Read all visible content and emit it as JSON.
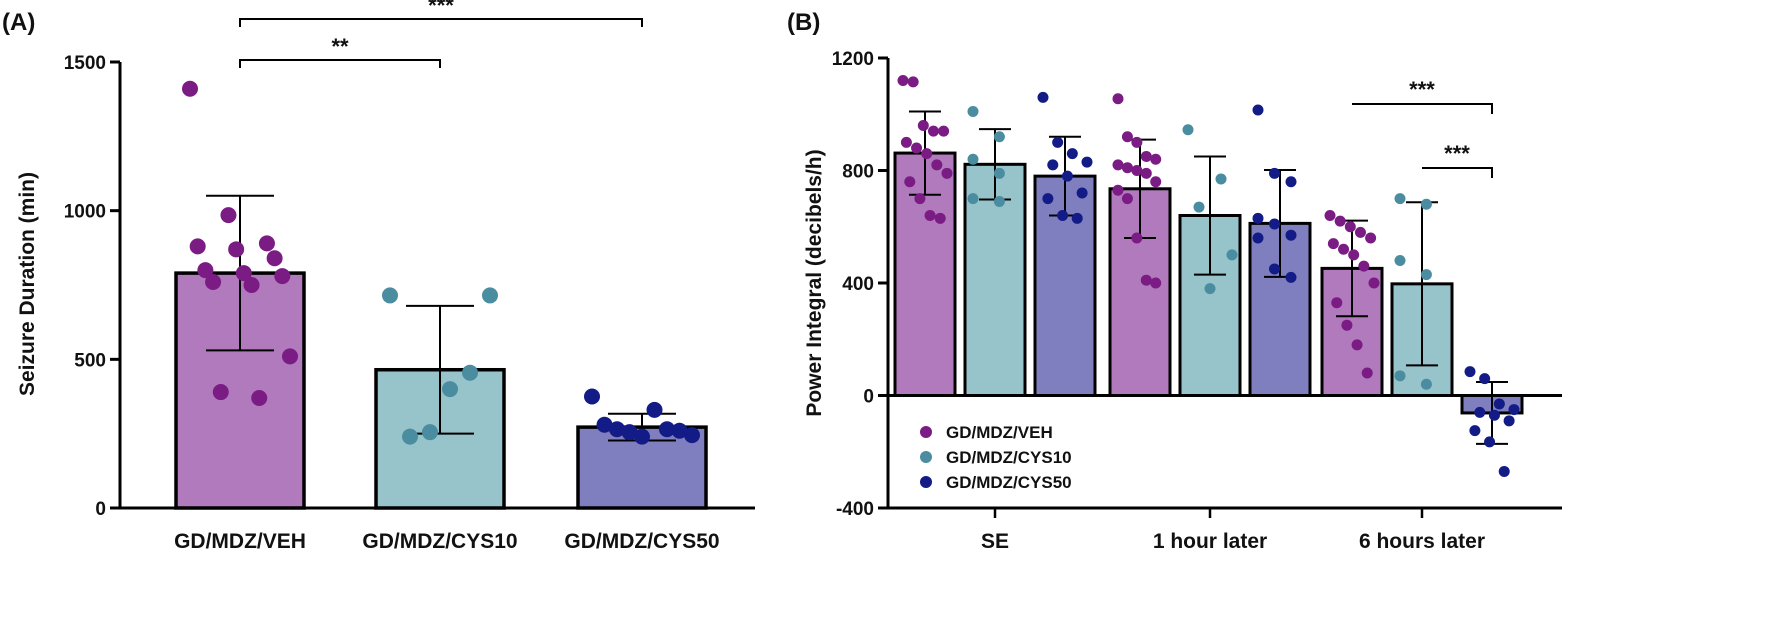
{
  "colors": {
    "veh": "#7b1b84",
    "veh_bar": "#b07abc",
    "cys10": "#4a8da0",
    "cys10_bar": "#97c3cb",
    "cys50": "#131c86",
    "cys50_bar": "#7f7fbf"
  },
  "chart_data": [
    {
      "type": "bar",
      "panel_label": "(A)",
      "ylabel": "Seizure Duration (min)",
      "xlabel": "",
      "ylim": [
        0,
        1500
      ],
      "yticks": [
        "0",
        "500",
        "1000",
        "1500"
      ],
      "grid": false,
      "categories": [
        "GD/MDZ/VEH",
        "GD/MDZ/CYS10",
        "GD/MDZ/CYS50"
      ],
      "values": [
        790,
        465,
        272
      ],
      "error": [
        260,
        215,
        45
      ],
      "points": [
        [
          1410,
          985,
          890,
          880,
          870,
          840,
          800,
          790,
          780,
          760,
          750,
          510,
          390,
          370
        ],
        [
          715,
          715,
          455,
          400,
          255,
          240
        ],
        [
          375,
          330,
          280,
          265,
          265,
          260,
          255,
          245,
          240
        ]
      ],
      "significance": [
        {
          "from": "GD/MDZ/VEH",
          "to": "GD/MDZ/CYS10",
          "label": "**"
        },
        {
          "from": "GD/MDZ/VEH",
          "to": "GD/MDZ/CYS50",
          "label": "***"
        }
      ]
    },
    {
      "type": "bar",
      "panel_label": "(B)",
      "ylabel": "Power Integral (decibels/h)",
      "xlabel": "",
      "ylim": [
        -400,
        1200
      ],
      "yticks": [
        "-400",
        "0",
        "400",
        "800",
        "1200"
      ],
      "grid": false,
      "categories": [
        "SE",
        "1 hour later",
        "6 hours later"
      ],
      "series": [
        {
          "name": "GD/MDZ/VEH",
          "values": [
            862,
            735,
            452
          ],
          "error": [
            148,
            175,
            170
          ],
          "points": [
            [
              1120,
              1115,
              960,
              940,
              940,
              900,
              880,
              860,
              820,
              790,
              760,
              700,
              640,
              630
            ],
            [
              1055,
              920,
              900,
              850,
              840,
              820,
              810,
              800,
              790,
              760,
              730,
              700,
              560,
              410,
              400
            ],
            [
              640,
              620,
              600,
              580,
              560,
              540,
              520,
              500,
              460,
              400,
              330,
              250,
              180,
              80
            ]
          ]
        },
        {
          "name": "GD/MDZ/CYS10",
          "values": [
            822,
            640,
            397
          ],
          "error": [
            125,
            210,
            290
          ],
          "points": [
            [
              1010,
              920,
              840,
              790,
              700,
              690
            ],
            [
              945,
              770,
              670,
              500,
              380
            ],
            [
              700,
              680,
              480,
              430,
              70,
              40
            ]
          ]
        },
        {
          "name": "GD/MDZ/CYS50",
          "values": [
            780,
            612,
            -62
          ],
          "error": [
            140,
            190,
            110
          ],
          "points": [
            [
              1060,
              900,
              860,
              830,
              820,
              780,
              720,
              700,
              640,
              630
            ],
            [
              1015,
              790,
              760,
              630,
              610,
              570,
              560,
              450,
              420
            ],
            [
              85,
              60,
              -30,
              -50,
              -60,
              -70,
              -90,
              -125,
              -165,
              -270
            ]
          ]
        }
      ],
      "legend": {
        "placement": "bottom-left",
        "entries": [
          "GD/MDZ/VEH",
          "GD/MDZ/CYS10",
          "GD/MDZ/CYS50"
        ]
      },
      "significance": [
        {
          "group": "6 hours later",
          "from": "GD/MDZ/VEH",
          "to": "GD/MDZ/CYS50",
          "label": "***"
        },
        {
          "group": "6 hours later",
          "from": "GD/MDZ/CYS10",
          "to": "GD/MDZ/CYS50",
          "label": "***"
        }
      ]
    }
  ]
}
